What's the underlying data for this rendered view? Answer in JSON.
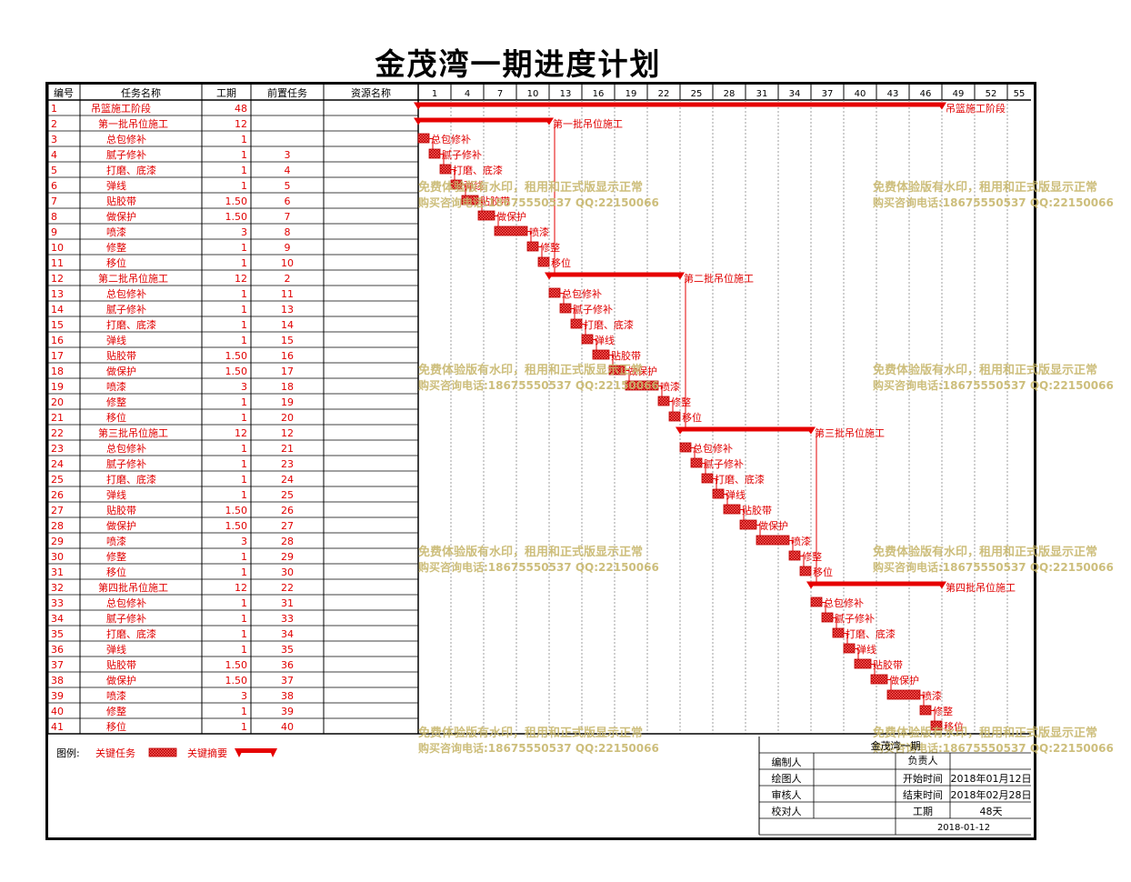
{
  "title": "金茂湾一期进度计划",
  "headers": [
    "编号",
    "任务名称",
    "工期",
    "前置任务",
    "资源名称"
  ],
  "timescale": [
    "1",
    "4",
    "7",
    "10",
    "13",
    "16",
    "19",
    "22",
    "25",
    "28",
    "31",
    "34",
    "37",
    "40",
    "43",
    "46",
    "49",
    "52",
    "55"
  ],
  "watermark": {
    "line1": "免费体验版有水印，租用和正式版显示正常",
    "line2": "购买咨询电话:18675550537 QQ:22150066"
  },
  "legend": {
    "label": "图例:",
    "critical_task": "关键任务",
    "critical_summary": "关键摘要"
  },
  "info": {
    "project": "金茂湾一期",
    "compiler_label": "编制人",
    "responsible_label": "负责人",
    "drawer_label": "绘图人",
    "start_label": "开始时间",
    "start_value": "2018年01月12日",
    "reviewer_label": "审核人",
    "end_label": "结束时间",
    "end_value": "2018年02月28日",
    "checker_label": "校对人",
    "duration_label": "工期",
    "duration_value": "48天",
    "date": "2018-01-12"
  },
  "colors": {
    "critical": "#e60000",
    "text_red": "#e00000",
    "watermark": "#c8b86e",
    "grid": "#888888"
  },
  "chart_data": {
    "type": "gantt",
    "x_unit": "day",
    "xlim": [
      1,
      56
    ],
    "tasks": [
      {
        "id": "1",
        "name": "吊篮施工阶段",
        "duration": "48",
        "pred": "",
        "summary": true,
        "level": 0,
        "start": 1,
        "end": 49
      },
      {
        "id": "2",
        "name": "第一批吊位施工",
        "duration": "12",
        "pred": "",
        "summary": true,
        "level": 1,
        "start": 1,
        "end": 13
      },
      {
        "id": "3",
        "name": "总包修补",
        "duration": "1",
        "pred": "",
        "summary": false,
        "level": 2,
        "start": 1,
        "end": 2
      },
      {
        "id": "4",
        "name": "腻子修补",
        "duration": "1",
        "pred": "3",
        "summary": false,
        "level": 2,
        "start": 2,
        "end": 3
      },
      {
        "id": "5",
        "name": "打磨、底漆",
        "duration": "1",
        "pred": "4",
        "summary": false,
        "level": 2,
        "start": 3,
        "end": 4
      },
      {
        "id": "6",
        "name": "弹线",
        "duration": "1",
        "pred": "5",
        "summary": false,
        "level": 2,
        "start": 4,
        "end": 5
      },
      {
        "id": "7",
        "name": "贴胶带",
        "duration": "1.50",
        "pred": "6",
        "summary": false,
        "level": 2,
        "start": 5,
        "end": 6.5
      },
      {
        "id": "8",
        "name": "做保护",
        "duration": "1.50",
        "pred": "7",
        "summary": false,
        "level": 2,
        "start": 6.5,
        "end": 8
      },
      {
        "id": "9",
        "name": "喷漆",
        "duration": "3",
        "pred": "8",
        "summary": false,
        "level": 2,
        "start": 8,
        "end": 11
      },
      {
        "id": "10",
        "name": "修整",
        "duration": "1",
        "pred": "9",
        "summary": false,
        "level": 2,
        "start": 11,
        "end": 12
      },
      {
        "id": "11",
        "name": "移位",
        "duration": "1",
        "pred": "10",
        "summary": false,
        "level": 2,
        "start": 12,
        "end": 13
      },
      {
        "id": "12",
        "name": "第二批吊位施工",
        "duration": "12",
        "pred": "2",
        "summary": true,
        "level": 1,
        "start": 13,
        "end": 25
      },
      {
        "id": "13",
        "name": "总包修补",
        "duration": "1",
        "pred": "11",
        "summary": false,
        "level": 2,
        "start": 13,
        "end": 14
      },
      {
        "id": "14",
        "name": "腻子修补",
        "duration": "1",
        "pred": "13",
        "summary": false,
        "level": 2,
        "start": 14,
        "end": 15
      },
      {
        "id": "15",
        "name": "打磨、底漆",
        "duration": "1",
        "pred": "14",
        "summary": false,
        "level": 2,
        "start": 15,
        "end": 16
      },
      {
        "id": "16",
        "name": "弹线",
        "duration": "1",
        "pred": "15",
        "summary": false,
        "level": 2,
        "start": 16,
        "end": 17
      },
      {
        "id": "17",
        "name": "贴胶带",
        "duration": "1.50",
        "pred": "16",
        "summary": false,
        "level": 2,
        "start": 17,
        "end": 18.5
      },
      {
        "id": "18",
        "name": "做保护",
        "duration": "1.50",
        "pred": "17",
        "summary": false,
        "level": 2,
        "start": 18.5,
        "end": 20
      },
      {
        "id": "19",
        "name": "喷漆",
        "duration": "3",
        "pred": "18",
        "summary": false,
        "level": 2,
        "start": 20,
        "end": 23
      },
      {
        "id": "20",
        "name": "修整",
        "duration": "1",
        "pred": "19",
        "summary": false,
        "level": 2,
        "start": 23,
        "end": 24
      },
      {
        "id": "21",
        "name": "移位",
        "duration": "1",
        "pred": "20",
        "summary": false,
        "level": 2,
        "start": 24,
        "end": 25
      },
      {
        "id": "22",
        "name": "第三批吊位施工",
        "duration": "12",
        "pred": "12",
        "summary": true,
        "level": 1,
        "start": 25,
        "end": 37
      },
      {
        "id": "23",
        "name": "总包修补",
        "duration": "1",
        "pred": "21",
        "summary": false,
        "level": 2,
        "start": 25,
        "end": 26
      },
      {
        "id": "24",
        "name": "腻子修补",
        "duration": "1",
        "pred": "23",
        "summary": false,
        "level": 2,
        "start": 26,
        "end": 27
      },
      {
        "id": "25",
        "name": "打磨、底漆",
        "duration": "1",
        "pred": "24",
        "summary": false,
        "level": 2,
        "start": 27,
        "end": 28
      },
      {
        "id": "26",
        "name": "弹线",
        "duration": "1",
        "pred": "25",
        "summary": false,
        "level": 2,
        "start": 28,
        "end": 29
      },
      {
        "id": "27",
        "name": "贴胶带",
        "duration": "1.50",
        "pred": "26",
        "summary": false,
        "level": 2,
        "start": 29,
        "end": 30.5
      },
      {
        "id": "28",
        "name": "做保护",
        "duration": "1.50",
        "pred": "27",
        "summary": false,
        "level": 2,
        "start": 30.5,
        "end": 32
      },
      {
        "id": "29",
        "name": "喷漆",
        "duration": "3",
        "pred": "28",
        "summary": false,
        "level": 2,
        "start": 32,
        "end": 35
      },
      {
        "id": "30",
        "name": "修整",
        "duration": "1",
        "pred": "29",
        "summary": false,
        "level": 2,
        "start": 35,
        "end": 36
      },
      {
        "id": "31",
        "name": "移位",
        "duration": "1",
        "pred": "30",
        "summary": false,
        "level": 2,
        "start": 36,
        "end": 37
      },
      {
        "id": "32",
        "name": "第四批吊位施工",
        "duration": "12",
        "pred": "22",
        "summary": true,
        "level": 1,
        "start": 37,
        "end": 49
      },
      {
        "id": "33",
        "name": "总包修补",
        "duration": "1",
        "pred": "31",
        "summary": false,
        "level": 2,
        "start": 37,
        "end": 38
      },
      {
        "id": "34",
        "name": "腻子修补",
        "duration": "1",
        "pred": "33",
        "summary": false,
        "level": 2,
        "start": 38,
        "end": 39
      },
      {
        "id": "35",
        "name": "打磨、底漆",
        "duration": "1",
        "pred": "34",
        "summary": false,
        "level": 2,
        "start": 39,
        "end": 40
      },
      {
        "id": "36",
        "name": "弹线",
        "duration": "1",
        "pred": "35",
        "summary": false,
        "level": 2,
        "start": 40,
        "end": 41
      },
      {
        "id": "37",
        "name": "贴胶带",
        "duration": "1.50",
        "pred": "36",
        "summary": false,
        "level": 2,
        "start": 41,
        "end": 42.5
      },
      {
        "id": "38",
        "name": "做保护",
        "duration": "1.50",
        "pred": "37",
        "summary": false,
        "level": 2,
        "start": 42.5,
        "end": 44
      },
      {
        "id": "39",
        "name": "喷漆",
        "duration": "3",
        "pred": "38",
        "summary": false,
        "level": 2,
        "start": 44,
        "end": 47
      },
      {
        "id": "40",
        "name": "修整",
        "duration": "1",
        "pred": "39",
        "summary": false,
        "level": 2,
        "start": 47,
        "end": 48
      },
      {
        "id": "41",
        "name": "移位",
        "duration": "1",
        "pred": "40",
        "summary": false,
        "level": 2,
        "start": 48,
        "end": 49
      }
    ]
  }
}
